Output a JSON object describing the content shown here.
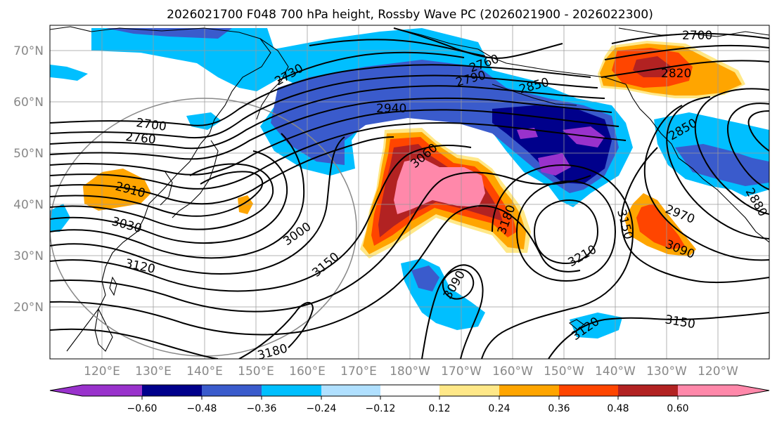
{
  "title": "2026021700 F048 700 hPa height, Rossby Wave PC (2026021900 - 2026022300)",
  "lat_labels": [
    "70°N",
    "60°N",
    "50°N",
    "40°N",
    "30°N",
    "20°N"
  ],
  "lon_labels": [
    "120°E",
    "130°E",
    "140°E",
    "150°E",
    "160°E",
    "170°E",
    "180°W",
    "170°W",
    "160°W",
    "150°W",
    "140°W",
    "130°W",
    "120°W"
  ],
  "colorbar": {
    "tick_labels": [
      "−0.60",
      "−0.48",
      "−0.36",
      "−0.24",
      "−0.12",
      "0.12",
      "0.24",
      "0.36",
      "0.48",
      "0.60"
    ],
    "colors": [
      "#9932cc",
      "#00008b",
      "#3a5bcc",
      "#00bfff",
      "#b0e0ff",
      "#ffffff",
      "#ffe888",
      "#ffa500",
      "#ff4500",
      "#b22222",
      "#ff88aa"
    ]
  },
  "contour_labels": {
    "c2700_e": "2700",
    "c2730": "2730",
    "c2700_w": "2700",
    "c2760": "2760",
    "c2760_n": "2760",
    "c2790": "2790",
    "c2820": "2820",
    "c2850_n": "2850",
    "c2850_e": "2850",
    "c2880": "2880",
    "c2910": "2910",
    "c2940": "2940",
    "c2970": "2970",
    "c3000": "3000",
    "c3030": "3030",
    "c3060": "3060",
    "c3090_e": "3090",
    "c3090_c": "3090",
    "c3120_w": "3120",
    "c3120_s": "3120",
    "c3150_c": "3150",
    "c3150_e": "3150",
    "c3150_s": "3150",
    "c3180_w": "3180",
    "c3180_c": "3180",
    "c3210": "3210"
  }
}
